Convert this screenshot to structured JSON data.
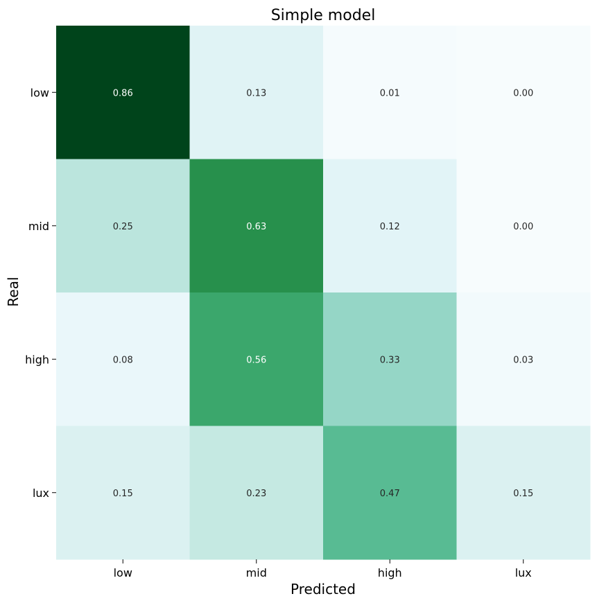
{
  "chart_data": {
    "type": "heatmap",
    "title": "Simple model",
    "xlabel": "Predicted",
    "ylabel": "Real",
    "x_categories": [
      "low",
      "mid",
      "high",
      "lux"
    ],
    "y_categories": [
      "low",
      "mid",
      "high",
      "lux"
    ],
    "values": [
      [
        0.86,
        0.13,
        0.01,
        0.0
      ],
      [
        0.25,
        0.63,
        0.12,
        0.0
      ],
      [
        0.08,
        0.56,
        0.33,
        0.03
      ],
      [
        0.15,
        0.23,
        0.47,
        0.15
      ]
    ],
    "value_labels": [
      [
        "0.86",
        "0.13",
        "0.01",
        "0.00"
      ],
      [
        "0.25",
        "0.63",
        "0.12",
        "0.00"
      ],
      [
        "0.08",
        "0.56",
        "0.33",
        "0.03"
      ],
      [
        "0.15",
        "0.23",
        "0.47",
        "0.15"
      ]
    ],
    "colormap": "BuGn",
    "color_range": [
      0,
      0.86
    ],
    "colorbar": false,
    "grid": false
  }
}
